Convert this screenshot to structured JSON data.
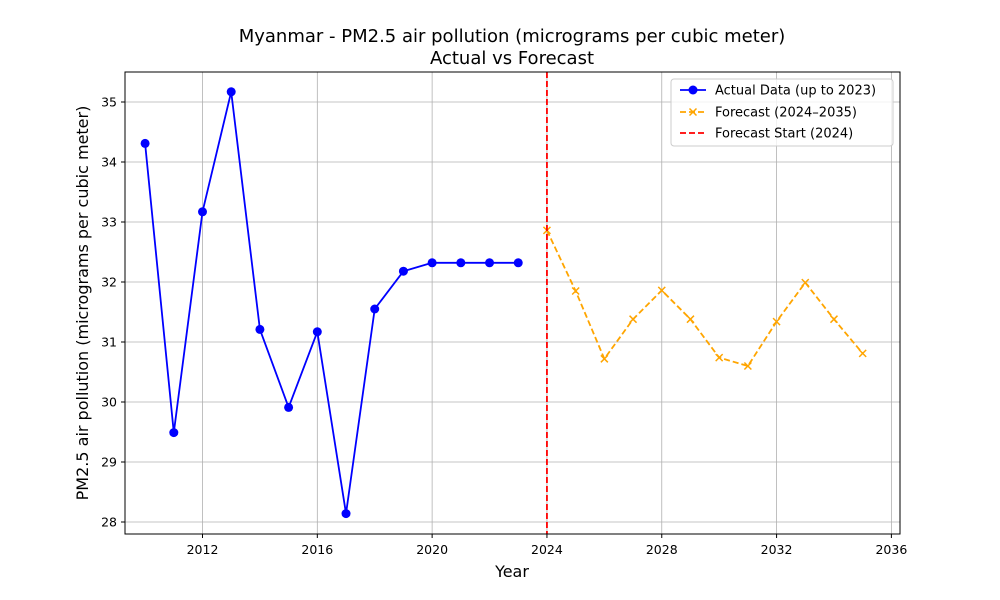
{
  "chart_data": {
    "type": "line",
    "title": "Myanmar - PM2.5 air pollution (micrograms per cubic meter)",
    "subtitle": "Actual vs Forecast",
    "xlabel": "Year",
    "ylabel": "PM2.5 air pollution (micrograms per cubic meter)",
    "xlim": [
      2009.3,
      2036.3
    ],
    "ylim": [
      27.8,
      35.5
    ],
    "x_ticks": [
      2012,
      2016,
      2020,
      2024,
      2028,
      2032,
      2036
    ],
    "y_ticks": [
      28,
      29,
      30,
      31,
      32,
      33,
      34,
      35
    ],
    "grid": true,
    "legend_position": "top-right",
    "series": [
      {
        "name": "Actual Data (up to 2023)",
        "color": "#0000ff",
        "line_style": "solid",
        "marker": "circle",
        "x": [
          2010,
          2011,
          2012,
          2013,
          2014,
          2015,
          2016,
          2017,
          2018,
          2019,
          2020,
          2021,
          2022,
          2023
        ],
        "values": [
          34.31,
          29.49,
          33.17,
          35.17,
          31.21,
          29.91,
          31.17,
          28.14,
          31.55,
          32.18,
          32.32,
          32.32,
          32.32,
          32.32
        ]
      },
      {
        "name": "Forecast (2024–2035)",
        "color": "#ffa500",
        "line_style": "dashed",
        "marker": "x",
        "x": [
          2024,
          2025,
          2026,
          2027,
          2028,
          2029,
          2030,
          2031,
          2032,
          2033,
          2034,
          2035
        ],
        "values": [
          32.86,
          31.85,
          30.72,
          31.38,
          31.86,
          31.38,
          30.74,
          30.6,
          31.34,
          31.99,
          31.38,
          30.81
        ]
      }
    ],
    "annotations": [
      {
        "name": "Forecast Start (2024)",
        "type": "vertical-line",
        "x": 2024,
        "color": "#ff0000",
        "line_style": "dashed"
      }
    ]
  }
}
